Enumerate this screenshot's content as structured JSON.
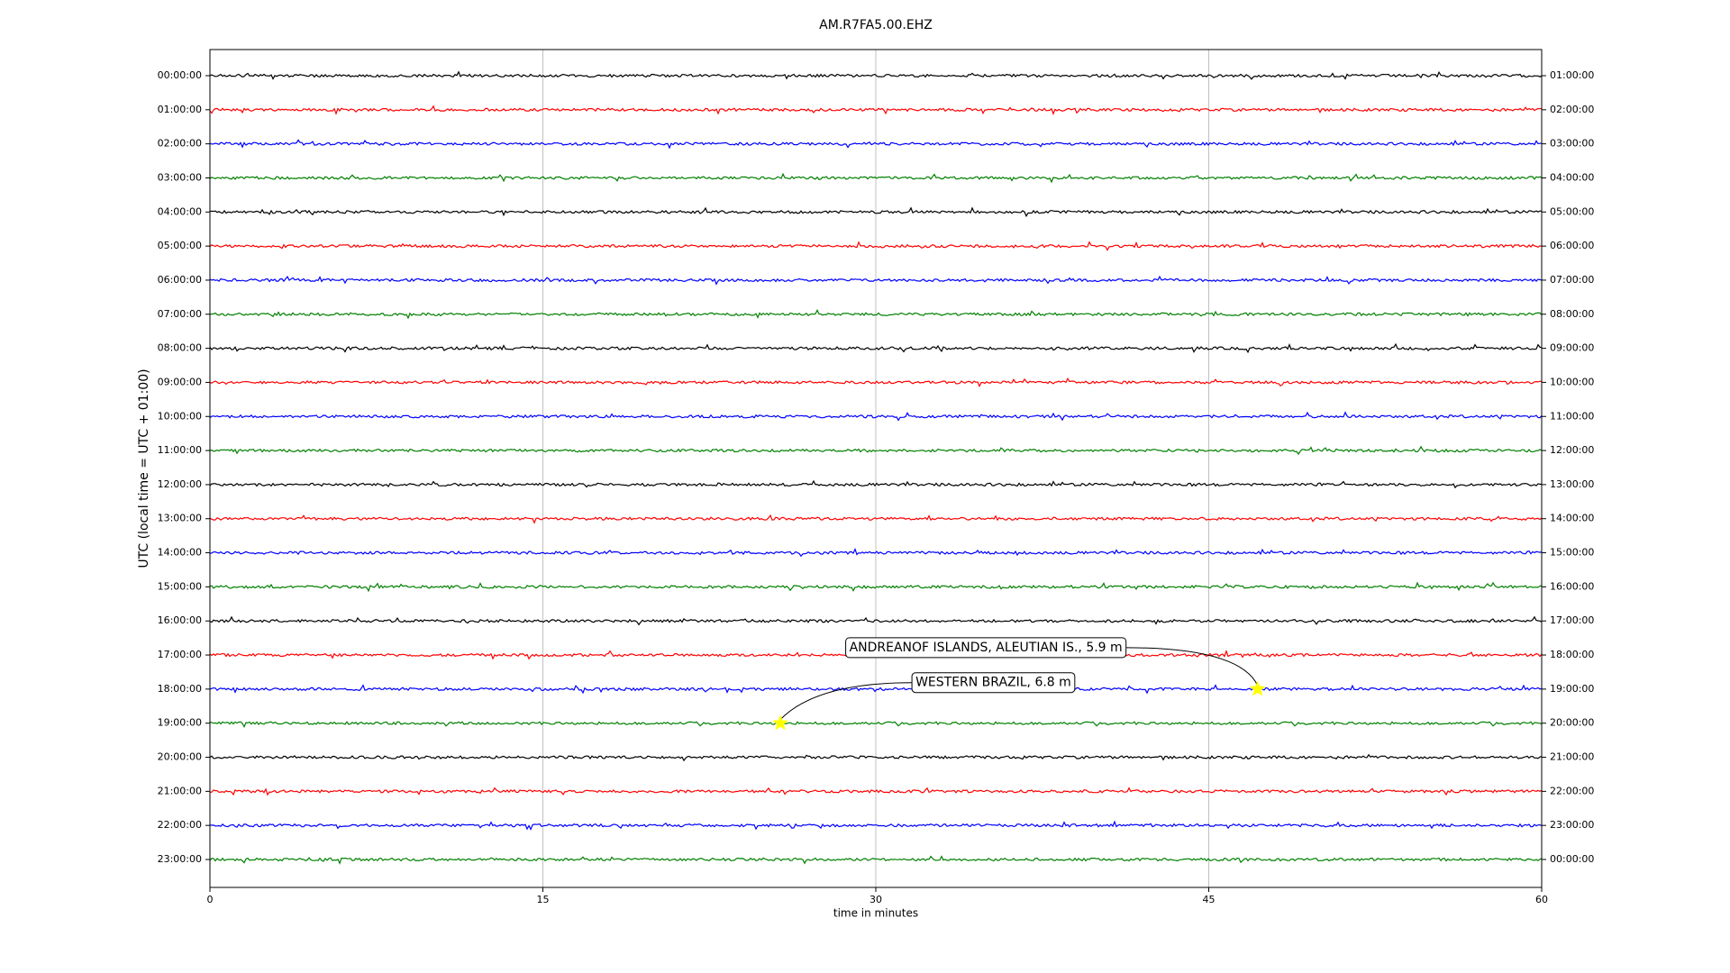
{
  "chart_data": {
    "type": "dayplot",
    "title": "AM.R7FA5.00.EHZ",
    "xlabel": "time in minutes",
    "ylabel": "UTC (local time = UTC + 01:00)",
    "xlim": [
      0,
      60
    ],
    "xticks": [
      0,
      15,
      30,
      45,
      60
    ],
    "grid": true,
    "colors": [
      "#000000",
      "#ff0000",
      "#0000ff",
      "#008000"
    ],
    "row_labels": [
      "00:00:00",
      "01:00:00",
      "02:00:00",
      "03:00:00",
      "04:00:00",
      "05:00:00",
      "06:00:00",
      "07:00:00",
      "08:00:00",
      "09:00:00",
      "10:00:00",
      "11:00:00",
      "12:00:00",
      "13:00:00",
      "14:00:00",
      "15:00:00",
      "16:00:00",
      "17:00:00",
      "18:00:00",
      "19:00:00",
      "20:00:00",
      "21:00:00",
      "22:00:00",
      "23:00:00"
    ],
    "right_labels": [
      "01:00:00",
      "02:00:00",
      "03:00:00",
      "04:00:00",
      "05:00:00",
      "06:00:00",
      "07:00:00",
      "08:00:00",
      "09:00:00",
      "10:00:00",
      "11:00:00",
      "12:00:00",
      "13:00:00",
      "14:00:00",
      "15:00:00",
      "16:00:00",
      "17:00:00",
      "18:00:00",
      "19:00:00",
      "20:00:00",
      "21:00:00",
      "22:00:00",
      "23:00:00",
      "00:00:00"
    ],
    "events": [
      {
        "label": "WESTERN BRAZIL, 6.8 m",
        "x": 25.7,
        "row": 19
      },
      {
        "label": "ANDREANOF ISLANDS, ALEUTIAN IS., 5.9 m",
        "x": 47.2,
        "row": 18
      }
    ]
  }
}
